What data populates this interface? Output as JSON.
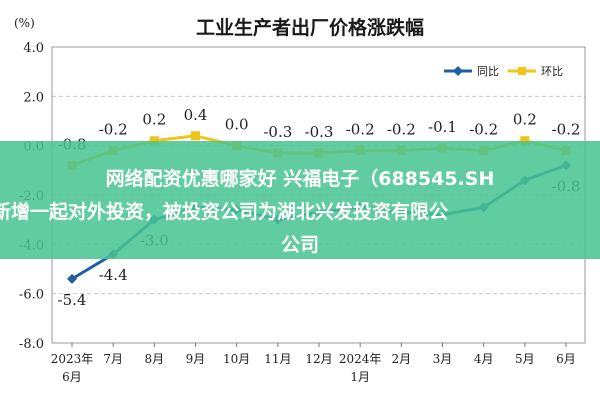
{
  "chart_data": {
    "type": "line",
    "title": "工业生产者出厂价格涨跌幅",
    "unit_label": "(%)",
    "xlabel": "",
    "ylabel": "",
    "ylim": [
      -8.0,
      4.0
    ],
    "y_ticks": [
      "4.0",
      "2.0",
      "0.0",
      "-2.0",
      "-4.0",
      "-6.0",
      "-8.0"
    ],
    "categories": [
      [
        "2023年",
        "6月"
      ],
      [
        "7月"
      ],
      [
        "8月"
      ],
      [
        "9月"
      ],
      [
        "10月"
      ],
      [
        "11月"
      ],
      [
        "12月"
      ],
      [
        "2024年",
        "1月"
      ],
      [
        "2月"
      ],
      [
        "3月"
      ],
      [
        "4月"
      ],
      [
        "5月"
      ],
      [
        "6月"
      ]
    ],
    "grid": true,
    "legend_position": "top-right",
    "series": [
      {
        "name": "同比",
        "color": "#1f5fa8",
        "marker": "diamond",
        "values": [
          -5.4,
          -4.4,
          -3.0,
          -2.5,
          -2.6,
          -3.0,
          -2.7,
          -2.5,
          -2.7,
          -2.8,
          -2.5,
          -1.4,
          -0.8
        ],
        "labels": [
          "-5.4",
          "-4.4",
          "-3.0",
          "",
          "",
          "",
          "",
          "",
          "",
          "",
          "",
          "",
          "-0.8"
        ]
      },
      {
        "name": "环比",
        "color": "#f0c419",
        "marker": "square",
        "values": [
          -0.8,
          -0.2,
          0.2,
          0.4,
          0.0,
          -0.3,
          -0.3,
          -0.2,
          -0.2,
          -0.1,
          -0.2,
          0.2,
          -0.2
        ],
        "labels": [
          "-0.8",
          "-0.2",
          "0.2",
          "0.4",
          "0.0",
          "-0.3",
          "-0.3",
          "-0.2",
          "-0.2",
          "-0.1",
          "-0.2",
          "0.2",
          "-0.2"
        ]
      }
    ]
  },
  "overlay": {
    "line1": "网络配资优惠哪家好 兴福电子（688545.SH",
    "line2": "新增一起对外投资，被投资公司为湖北兴发投资有限公",
    "line3": "公司"
  }
}
